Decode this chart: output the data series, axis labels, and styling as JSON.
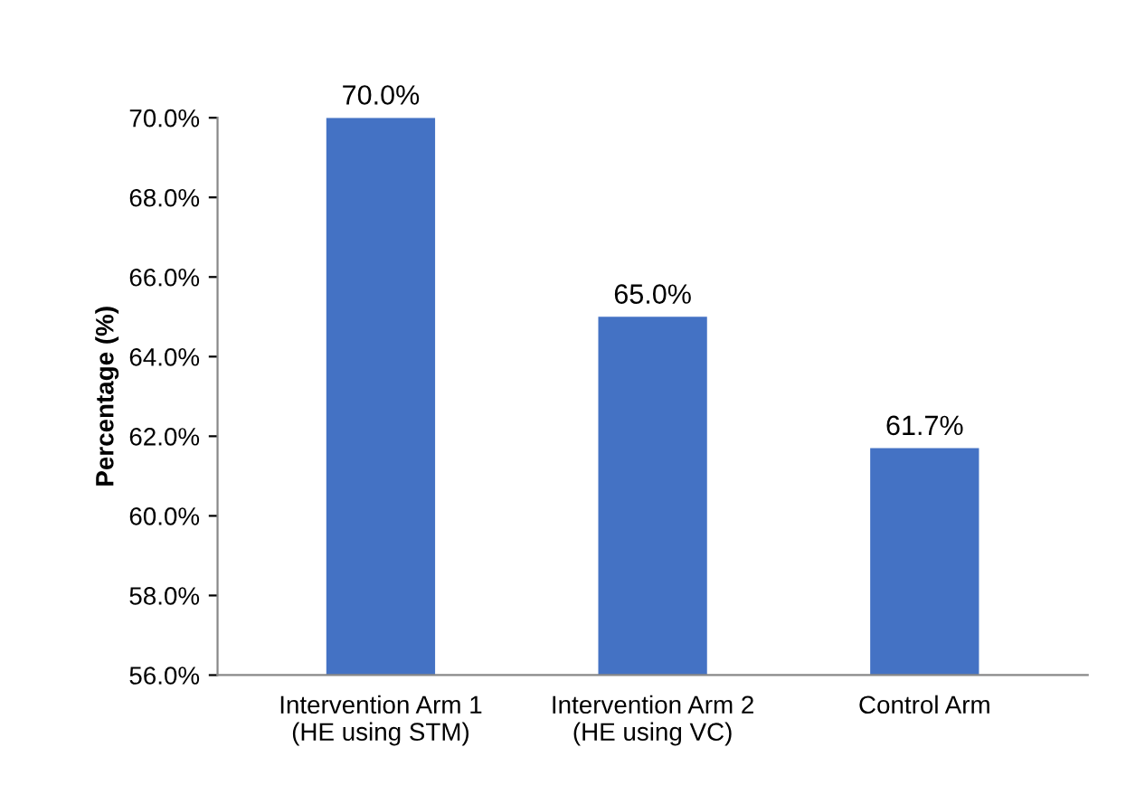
{
  "chart_data": {
    "type": "bar",
    "ylabel": "Percentage (%)",
    "categories": [
      "Intervention Arm 1\n(HE using STM)",
      "Intervention Arm 2\n(HE using VC)",
      "Control Arm"
    ],
    "values": [
      70.0,
      65.0,
      61.7
    ],
    "color": "#4472c4",
    "value_labels": [
      "70.0%",
      "65.0%",
      "61.7%"
    ],
    "ylim": [
      56,
      70
    ],
    "yticks": [
      {
        "value": 56,
        "label": "56.0%"
      },
      {
        "value": 58,
        "label": "58.0%"
      },
      {
        "value": 60,
        "label": "60.0%"
      },
      {
        "value": 62,
        "label": "62.0%"
      },
      {
        "value": 64,
        "label": "64.0%"
      },
      {
        "value": 66,
        "label": "66.0%"
      },
      {
        "value": 68,
        "label": "68.0%"
      },
      {
        "value": 70,
        "label": "70.0%"
      }
    ],
    "grid": false,
    "legend": false
  }
}
